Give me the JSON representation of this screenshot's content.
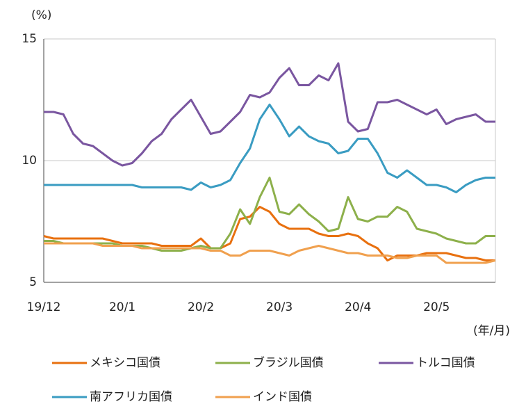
{
  "chart_data": {
    "type": "line",
    "y_label": "(%)",
    "x_label": "(年/月)",
    "categories": [
      "19/12",
      null,
      null,
      null,
      null,
      null,
      null,
      null,
      "20/1",
      null,
      null,
      null,
      null,
      null,
      null,
      null,
      "20/2",
      null,
      null,
      null,
      null,
      null,
      null,
      null,
      "20/3",
      null,
      null,
      null,
      null,
      null,
      null,
      null,
      "20/4",
      null,
      null,
      null,
      null,
      null,
      null,
      null,
      "20/5",
      null,
      null,
      null,
      null,
      null,
      null
    ],
    "ylim": [
      5,
      15
    ],
    "yticks": [
      5,
      10,
      15
    ],
    "grid": true,
    "series": [
      {
        "name": "メキシコ国債",
        "color": "#e8700f",
        "values": [
          6.9,
          6.8,
          6.8,
          6.8,
          6.8,
          6.8,
          6.8,
          6.7,
          6.6,
          6.6,
          6.6,
          6.6,
          6.5,
          6.5,
          6.5,
          6.5,
          6.8,
          6.4,
          6.4,
          6.6,
          7.6,
          7.7,
          8.1,
          7.9,
          7.4,
          7.2,
          7.2,
          7.2,
          7.0,
          6.9,
          6.9,
          7.0,
          6.9,
          6.6,
          6.4,
          5.9,
          6.1,
          6.1,
          6.1,
          6.2,
          6.2,
          6.2,
          6.1,
          6.0,
          6.0,
          5.9,
          5.9
        ]
      },
      {
        "name": "ブラジル国債",
        "color": "#8db04b",
        "values": [
          6.7,
          6.7,
          6.6,
          6.6,
          6.6,
          6.6,
          6.6,
          6.6,
          6.5,
          6.5,
          6.5,
          6.4,
          6.3,
          6.3,
          6.3,
          6.4,
          6.5,
          6.4,
          6.4,
          7.0,
          8.0,
          7.4,
          8.5,
          9.3,
          7.9,
          7.8,
          8.2,
          7.8,
          7.5,
          7.1,
          7.2,
          8.5,
          7.6,
          7.5,
          7.7,
          7.7,
          8.1,
          7.9,
          7.2,
          7.1,
          7.0,
          6.8,
          6.7,
          6.6,
          6.6,
          6.9,
          6.9
        ]
      },
      {
        "name": "トルコ国債",
        "color": "#7a56a0",
        "values": [
          12.0,
          12.0,
          11.9,
          11.1,
          10.7,
          10.6,
          10.3,
          10.0,
          9.8,
          9.9,
          10.3,
          10.8,
          11.1,
          11.7,
          12.1,
          12.5,
          11.8,
          11.1,
          11.2,
          11.6,
          12.0,
          12.7,
          12.6,
          12.8,
          13.4,
          13.8,
          13.1,
          13.1,
          13.5,
          13.3,
          14.0,
          11.6,
          11.2,
          11.3,
          12.4,
          12.4,
          12.5,
          12.3,
          12.1,
          11.9,
          12.1,
          11.5,
          11.7,
          11.8,
          11.9,
          11.6,
          11.6
        ]
      },
      {
        "name": "南アフリカ国債",
        "color": "#3a9cc2",
        "values": [
          9.0,
          9.0,
          9.0,
          9.0,
          9.0,
          9.0,
          9.0,
          9.0,
          9.0,
          9.0,
          8.9,
          8.9,
          8.9,
          8.9,
          8.9,
          8.8,
          9.1,
          8.9,
          9.0,
          9.2,
          9.9,
          10.5,
          11.7,
          12.3,
          11.7,
          11.0,
          11.4,
          11.0,
          10.8,
          10.7,
          10.3,
          10.4,
          10.9,
          10.9,
          10.3,
          9.5,
          9.3,
          9.6,
          9.3,
          9.0,
          9.0,
          8.9,
          8.7,
          9.0,
          9.2,
          9.3,
          9.3
        ]
      },
      {
        "name": "インド国債",
        "color": "#f0a04e",
        "values": [
          6.6,
          6.6,
          6.6,
          6.6,
          6.6,
          6.6,
          6.5,
          6.5,
          6.5,
          6.5,
          6.4,
          6.4,
          6.4,
          6.4,
          6.4,
          6.4,
          6.4,
          6.3,
          6.3,
          6.1,
          6.1,
          6.3,
          6.3,
          6.3,
          6.2,
          6.1,
          6.3,
          6.4,
          6.5,
          6.4,
          6.3,
          6.2,
          6.2,
          6.1,
          6.1,
          6.1,
          6.0,
          6.0,
          6.1,
          6.1,
          6.1,
          5.8,
          5.8,
          5.8,
          5.8,
          5.8,
          5.9
        ]
      }
    ]
  }
}
